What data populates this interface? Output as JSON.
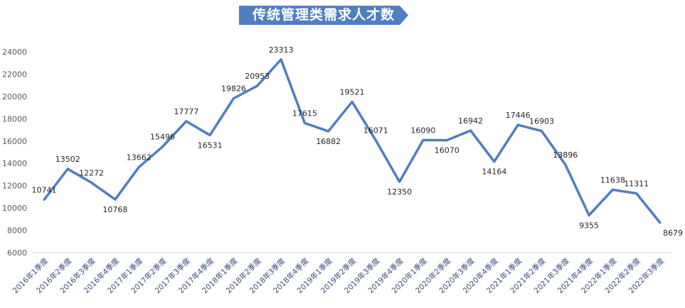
{
  "chart_data": {
    "type": "line",
    "title": "传统管理类需求人才数",
    "xlabel": "",
    "ylabel": "",
    "ylim": [
      6000,
      24000
    ],
    "yticks": [
      6000,
      8000,
      10000,
      12000,
      14000,
      16000,
      18000,
      20000,
      22000,
      24000
    ],
    "grid": false,
    "line_color": "#4f7fbf",
    "categories": [
      "2016年1季度",
      "2016年2季度",
      "2016年3季度",
      "2016年4季度",
      "2017年1季度",
      "2017年2季度",
      "2017年3季度",
      "2017年4季度",
      "2018年1季度",
      "2018年2季度",
      "2018年3季度",
      "2018年4季度",
      "2019年1季度",
      "2019年2季度",
      "2019年3季度",
      "2019年4季度",
      "2020年1季度",
      "2020年2季度",
      "2020年3季度",
      "2020年4季度",
      "2021年1季度",
      "2021年2季度",
      "2021年3季度",
      "2021年4季度",
      "2022年1季度",
      "2022年2季度",
      "2022年3季度"
    ],
    "values": [
      10741,
      13502,
      12272,
      10768,
      13662,
      15496,
      17777,
      16531,
      19826,
      20953,
      23313,
      17615,
      16882,
      19521,
      16071,
      12350,
      16090,
      16070,
      16942,
      14164,
      17446,
      16903,
      13896,
      9355,
      11638,
      11311,
      8679
    ]
  }
}
